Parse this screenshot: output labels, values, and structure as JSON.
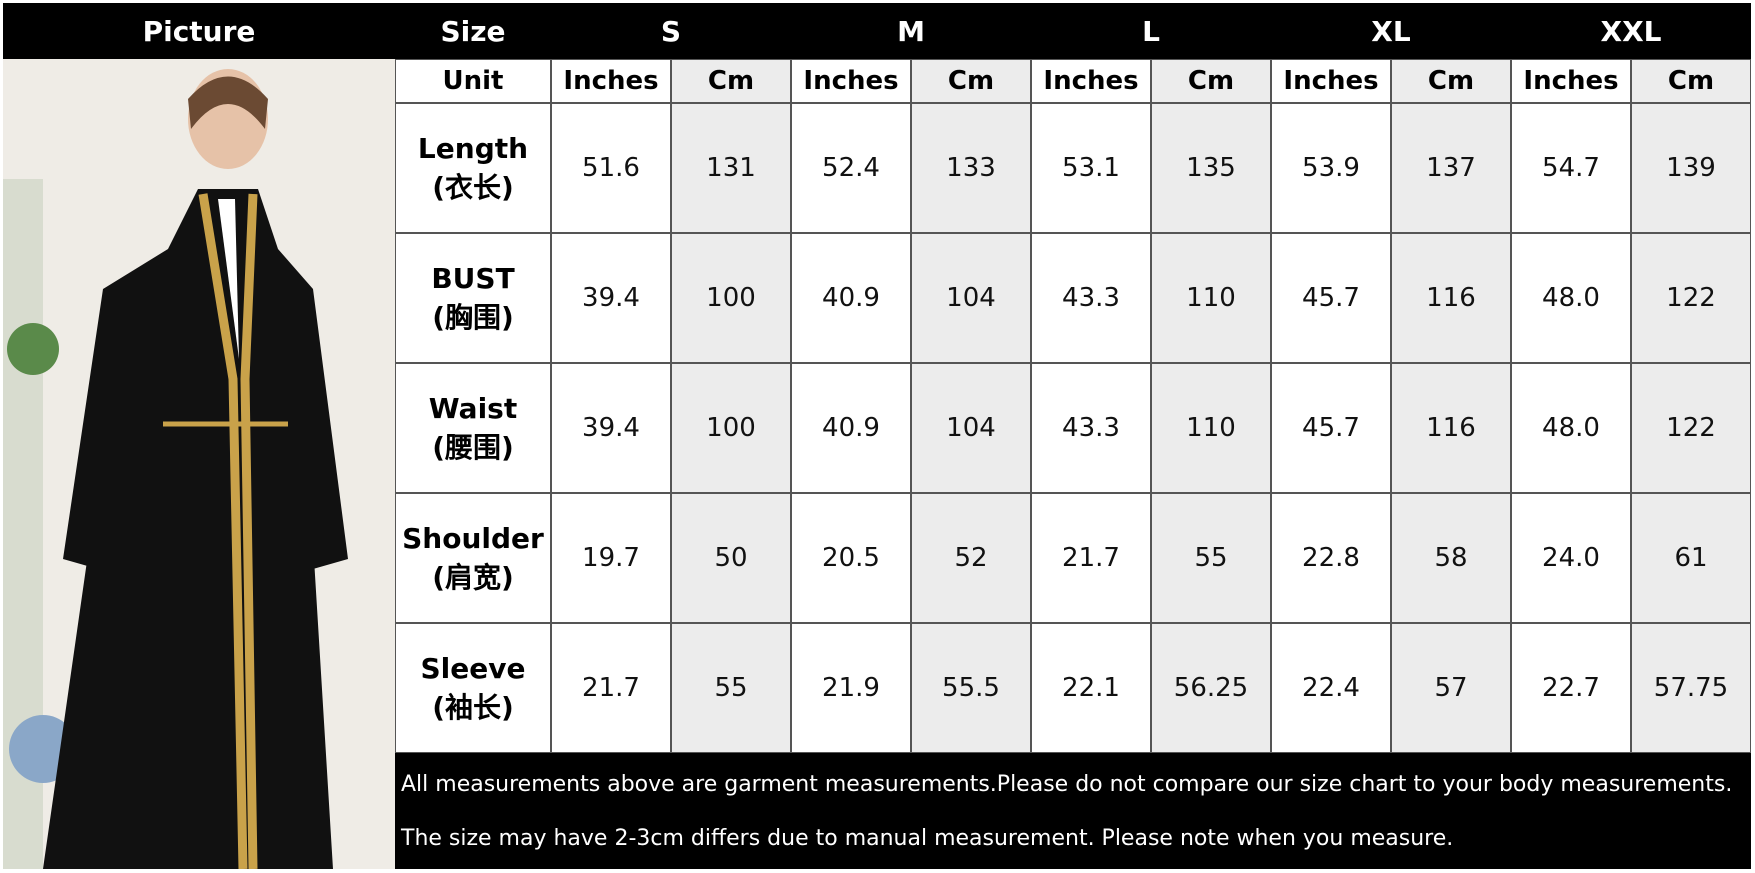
{
  "header": {
    "picture": "Picture",
    "size": "Size",
    "sizes": [
      "S",
      "M",
      "L",
      "XL",
      "XXL"
    ]
  },
  "unit_row": {
    "label": "Unit",
    "units": [
      "Inches",
      "Cm",
      "Inches",
      "Cm",
      "Inches",
      "Cm",
      "Inches",
      "Cm",
      "Inches",
      "Cm"
    ]
  },
  "rows": [
    {
      "label": "Length",
      "label_cn": "(衣长)",
      "values": [
        "51.6",
        "131",
        "52.4",
        "133",
        "53.1",
        "135",
        "53.9",
        "137",
        "54.7",
        "139"
      ]
    },
    {
      "label": "BUST",
      "label_cn": "(胸围)",
      "values": [
        "39.4",
        "100",
        "40.9",
        "104",
        "43.3",
        "110",
        "45.7",
        "116",
        "48.0",
        "122"
      ]
    },
    {
      "label": "Waist",
      "label_cn": "(腰围)",
      "values": [
        "39.4",
        "100",
        "40.9",
        "104",
        "43.3",
        "110",
        "45.7",
        "116",
        "48.0",
        "122"
      ]
    },
    {
      "label": "Shoulder",
      "label_cn": "(肩宽)",
      "values": [
        "19.7",
        "50",
        "20.5",
        "52",
        "21.7",
        "55",
        "22.8",
        "58",
        "24.0",
        "61"
      ]
    },
    {
      "label": "Sleeve",
      "label_cn": "(袖长)",
      "values": [
        "21.7",
        "55",
        "21.9",
        "55.5",
        "22.1",
        "56.25",
        "22.4",
        "57",
        "22.7",
        "57.75"
      ]
    }
  ],
  "notes": [
    "All measurements above are garment measurements.Please do not compare our size chart to your body measurements.",
    "The size may have 2-3cm differs due to manual measurement. Please note when you measure."
  ]
}
